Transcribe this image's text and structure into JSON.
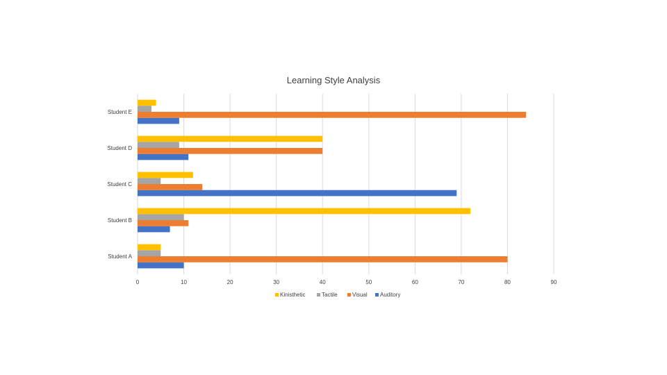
{
  "chart_data": {
    "type": "bar",
    "orientation": "horizontal",
    "title": "Learning Style Analysis",
    "categories": [
      "Student A",
      "Student B",
      "Student C",
      "Student D",
      "Student E"
    ],
    "series": [
      {
        "name": "Auditory",
        "color": "#4472C4",
        "values": [
          10,
          7,
          69,
          11,
          9
        ]
      },
      {
        "name": "Visual",
        "color": "#ED7D31",
        "values": [
          80,
          11,
          14,
          40,
          84
        ]
      },
      {
        "name": "Tactile",
        "color": "#A5A5A5",
        "values": [
          5,
          10,
          5,
          9,
          3
        ]
      },
      {
        "name": "Kinisthetic",
        "color": "#FFC000",
        "values": [
          5,
          72,
          12,
          40,
          4
        ]
      }
    ],
    "legend_order": [
      "Kinisthetic",
      "Tactile",
      "Visual",
      "Auditory"
    ],
    "xlim": [
      0,
      90
    ],
    "x_ticks": [
      0,
      10,
      20,
      30,
      40,
      50,
      60,
      70,
      80,
      90
    ],
    "grid": "vertical",
    "legend_position": "bottom"
  }
}
